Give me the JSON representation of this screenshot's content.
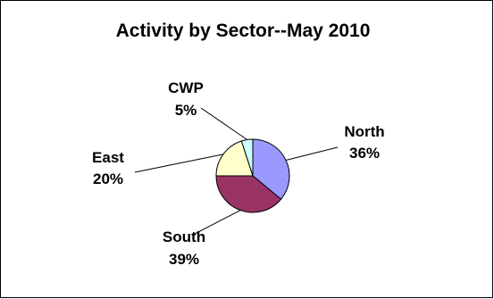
{
  "chart_data": {
    "type": "pie",
    "title": "Activity by Sector--May 2010",
    "slices": [
      {
        "label": "North",
        "value": 36,
        "pct_label": "36%",
        "color": "#9999ff"
      },
      {
        "label": "South",
        "value": 39,
        "pct_label": "39%",
        "color": "#993366"
      },
      {
        "label": "East",
        "value": 20,
        "pct_label": "20%",
        "color": "#ffffcc"
      },
      {
        "label": "CWP",
        "value": 5,
        "pct_label": "5%",
        "color": "#ccffff"
      }
    ],
    "start_angle": "12 o'clock",
    "direction": "clockwise",
    "legend": "none",
    "data_labels": "category and percent, outside with leader lines"
  }
}
